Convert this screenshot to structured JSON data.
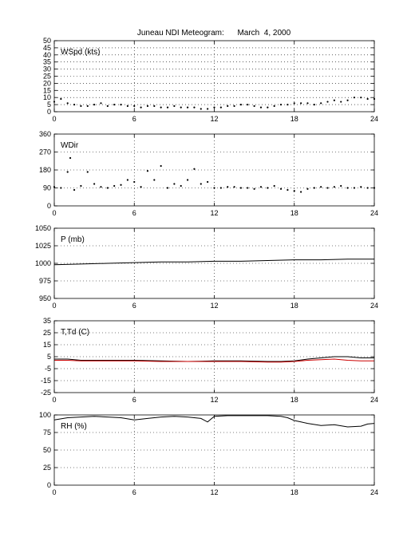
{
  "title": "Juneau NDI Meteogram:      March  4, 2000",
  "colors": {
    "black": "#000000",
    "red": "#cc0000",
    "grid": "#000000"
  },
  "chart_data": [
    {
      "type": "scatter",
      "label": "WSpd (kts)",
      "xlim": [
        0,
        24
      ],
      "ylim": [
        0,
        50
      ],
      "xticks": [
        0,
        6,
        12,
        18,
        24
      ],
      "yticks": [
        0,
        5,
        10,
        15,
        20,
        25,
        30,
        35,
        40,
        45,
        50
      ],
      "grid": true,
      "series": [
        {
          "color": "#000000",
          "marker": "dot",
          "x": [
            0,
            0.5,
            1,
            1.5,
            2,
            2.5,
            3,
            3.5,
            4,
            4.5,
            5,
            5.5,
            6,
            6.5,
            7,
            7.5,
            8,
            8.5,
            9,
            9.5,
            10,
            10.5,
            11,
            11.5,
            12,
            12.5,
            13,
            13.5,
            14,
            14.5,
            15,
            15.5,
            16,
            16.5,
            17,
            17.5,
            18,
            18.5,
            19,
            19.5,
            20,
            20.5,
            21,
            21.5,
            22,
            22.5,
            23,
            23.5,
            24
          ],
          "y": [
            7,
            9,
            6,
            5,
            4,
            4,
            5,
            6,
            4,
            5,
            5,
            4,
            4,
            3,
            4,
            4,
            3,
            3,
            4,
            3,
            3,
            3,
            2,
            2,
            3,
            3,
            4,
            4,
            5,
            5,
            4,
            3,
            3,
            4,
            5,
            5,
            6,
            6,
            6,
            5,
            6,
            7,
            8,
            7,
            8,
            10,
            10,
            9,
            9
          ]
        }
      ]
    },
    {
      "type": "scatter",
      "label": "WDir",
      "xlim": [
        0,
        24
      ],
      "ylim": [
        0,
        360
      ],
      "xticks": [
        0,
        6,
        12,
        18,
        24
      ],
      "yticks": [
        0,
        90,
        180,
        270,
        360
      ],
      "grid": true,
      "series": [
        {
          "color": "#000000",
          "marker": "dot",
          "x": [
            0,
            0.5,
            1,
            1.2,
            1.5,
            2,
            2.5,
            3,
            3.5,
            4,
            4.5,
            5,
            5.5,
            6,
            6.5,
            7,
            7.5,
            8,
            8.5,
            9,
            9.5,
            10,
            10.5,
            11,
            11.5,
            12,
            12.5,
            13,
            13.5,
            14,
            14.5,
            15,
            15.5,
            16,
            16.5,
            17,
            17.5,
            18,
            18.5,
            19,
            19.5,
            20,
            20.5,
            21,
            21.5,
            22,
            22.5,
            23,
            23.5,
            24
          ],
          "y": [
            95,
            90,
            170,
            240,
            80,
            100,
            170,
            110,
            95,
            90,
            100,
            105,
            130,
            120,
            95,
            175,
            130,
            200,
            90,
            110,
            100,
            130,
            185,
            110,
            120,
            90,
            90,
            95,
            95,
            90,
            90,
            85,
            95,
            90,
            100,
            85,
            80,
            75,
            70,
            85,
            90,
            95,
            90,
            95,
            100,
            90,
            90,
            95,
            90,
            90
          ]
        }
      ]
    },
    {
      "type": "line",
      "label": "P (mb)",
      "xlim": [
        0,
        24
      ],
      "ylim": [
        950,
        1050
      ],
      "xticks": [
        0,
        6,
        12,
        18,
        24
      ],
      "yticks": [
        950,
        975,
        1000,
        1025,
        1050
      ],
      "grid": true,
      "series": [
        {
          "color": "#000000",
          "x": [
            0,
            2,
            4,
            6,
            8,
            10,
            12,
            14,
            16,
            18,
            20,
            22,
            24
          ],
          "y": [
            998,
            999,
            1000,
            1001,
            1002,
            1002,
            1003,
            1003,
            1004,
            1005,
            1005,
            1006,
            1006
          ]
        }
      ]
    },
    {
      "type": "line",
      "label": "T,Td (C)",
      "xlim": [
        0,
        24
      ],
      "ylim": [
        -25,
        35
      ],
      "xticks": [
        0,
        6,
        12,
        18,
        24
      ],
      "yticks": [
        -25,
        -15,
        -5,
        5,
        15,
        25,
        35
      ],
      "grid": true,
      "series": [
        {
          "color": "#000000",
          "x": [
            0,
            1,
            2,
            4,
            6,
            8,
            10,
            12,
            14,
            16,
            17,
            18,
            19,
            20,
            21,
            22,
            23,
            24
          ],
          "y": [
            3,
            3,
            2,
            2,
            2,
            1.5,
            1,
            1.5,
            1.5,
            1,
            1,
            1.5,
            3,
            4,
            5,
            5,
            4,
            4
          ]
        },
        {
          "color": "#cc0000",
          "x": [
            0,
            1,
            2,
            4,
            6,
            8,
            10,
            12,
            14,
            16,
            17,
            18,
            19,
            20,
            21,
            22,
            23,
            24
          ],
          "y": [
            2,
            2,
            1.5,
            1.5,
            1.5,
            1,
            1,
            1,
            1,
            0.5,
            0.5,
            1,
            2,
            2.5,
            3,
            2,
            1.5,
            1.5
          ]
        }
      ]
    },
    {
      "type": "line",
      "label": "RH (%)",
      "xlim": [
        0,
        24
      ],
      "ylim": [
        0,
        100
      ],
      "xticks": [
        0,
        6,
        12,
        18,
        24
      ],
      "yticks": [
        0,
        25,
        50,
        75,
        100
      ],
      "grid": true,
      "series": [
        {
          "color": "#000000",
          "x": [
            0,
            1,
            2,
            3,
            4,
            5,
            6,
            7,
            8,
            9,
            10,
            11,
            11.5,
            12,
            13,
            14,
            15,
            16,
            17,
            17.5,
            18,
            18.5,
            19,
            20,
            21,
            22,
            23,
            23.5,
            24
          ],
          "y": [
            93,
            96,
            97,
            98,
            97,
            96,
            93,
            95,
            97,
            98,
            97,
            95,
            90,
            98,
            99,
            99,
            99,
            99,
            98,
            96,
            92,
            90,
            88,
            85,
            86,
            83,
            84,
            87,
            88
          ]
        }
      ]
    }
  ]
}
